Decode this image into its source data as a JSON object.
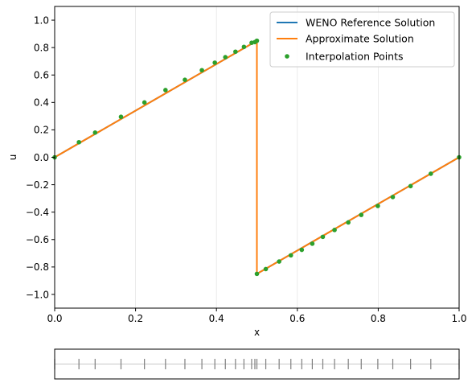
{
  "chart_data": [
    {
      "type": "line",
      "xlabel": "x",
      "ylabel": "u",
      "xlim": [
        0.0,
        1.0
      ],
      "ylim": [
        -1.1,
        1.1
      ],
      "xticks": [
        "0.0",
        "0.2",
        "0.4",
        "0.6",
        "0.8",
        "1.0"
      ],
      "yticks": [
        "-1.0",
        "-0.8",
        "-0.6",
        "-0.4",
        "-0.2",
        "0.0",
        "0.2",
        "0.4",
        "0.6",
        "0.8",
        "1.0"
      ],
      "grid": true,
      "legend": "top-right",
      "series": [
        {
          "name": "WENO Reference Solution",
          "kind": "line",
          "color": "#1f77b4",
          "x": [
            0.0,
            0.5,
            0.5,
            1.0
          ],
          "y": [
            0.0,
            0.85,
            -0.85,
            0.0
          ]
        },
        {
          "name": "Approximate Solution",
          "kind": "line",
          "color": "#ff7f0e",
          "x": [
            0.0,
            0.5,
            0.5,
            1.0
          ],
          "y": [
            0.0,
            0.85,
            -0.85,
            0.0
          ]
        },
        {
          "name": "Interpolation Points",
          "kind": "scatter",
          "color": "#2ca02c",
          "x": [
            0.0,
            0.06,
            0.1,
            0.164,
            0.222,
            0.274,
            0.322,
            0.364,
            0.396,
            0.422,
            0.447,
            0.468,
            0.487,
            0.495,
            0.5,
            0.5,
            0.522,
            0.555,
            0.584,
            0.611,
            0.637,
            0.663,
            0.692,
            0.726,
            0.758,
            0.799,
            0.836,
            0.88,
            0.93,
            1.0
          ],
          "y": [
            0.0,
            0.11,
            0.18,
            0.295,
            0.4,
            0.49,
            0.565,
            0.635,
            0.69,
            0.73,
            0.77,
            0.805,
            0.835,
            0.84,
            0.85,
            -0.85,
            -0.815,
            -0.76,
            -0.715,
            -0.675,
            -0.63,
            -0.58,
            -0.53,
            -0.475,
            -0.42,
            -0.355,
            -0.29,
            -0.21,
            -0.12,
            0.0
          ]
        }
      ]
    },
    {
      "type": "rug",
      "xlim": [
        0.0,
        1.0
      ],
      "x": [
        0.0,
        0.06,
        0.1,
        0.164,
        0.222,
        0.274,
        0.322,
        0.364,
        0.396,
        0.422,
        0.447,
        0.468,
        0.487,
        0.495,
        0.5,
        0.522,
        0.555,
        0.584,
        0.611,
        0.637,
        0.663,
        0.692,
        0.726,
        0.758,
        0.799,
        0.836,
        0.88,
        0.93,
        1.0
      ],
      "baseline_color": "#c8c8c8",
      "tick_color": "#7f7f7f"
    }
  ]
}
